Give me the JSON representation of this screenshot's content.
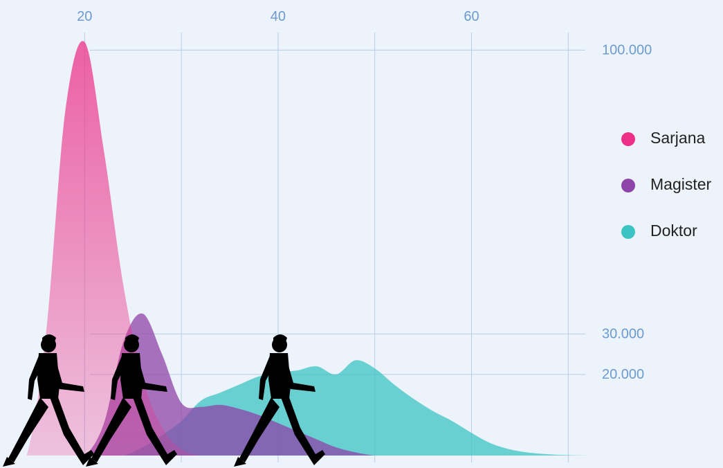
{
  "chart_data": {
    "type": "area",
    "x": [
      12,
      14,
      16,
      18,
      20,
      22,
      24,
      26,
      28,
      30,
      32,
      34,
      36,
      38,
      40,
      42,
      44,
      46,
      48,
      50,
      52,
      54,
      56,
      58,
      60,
      62,
      64,
      66,
      68,
      70,
      72
    ],
    "series": [
      {
        "name": "Doktor",
        "color": "#3cc4c4",
        "values": [
          0,
          0,
          0,
          0,
          0,
          0,
          0,
          2000,
          5000,
          8500,
          13500,
          15500,
          17500,
          19500,
          20500,
          21000,
          22000,
          20000,
          23500,
          21500,
          17500,
          14000,
          11000,
          8500,
          5600,
          3000,
          1500,
          700,
          300,
          100,
          0
        ]
      },
      {
        "name": "Magister",
        "color": "#8e44a8",
        "values": [
          0,
          0,
          0,
          0,
          0,
          8000,
          28000,
          35000,
          25000,
          13000,
          12000,
          12500,
          11500,
          10000,
          8000,
          6000,
          4000,
          2000,
          800,
          0,
          0,
          0,
          0,
          0,
          0,
          0,
          0,
          0,
          0,
          0,
          0
        ]
      },
      {
        "name": "Sarjana",
        "color": "#ec2f87",
        "values": [
          0,
          0,
          30000,
          85000,
          102000,
          75000,
          42000,
          19000,
          7000,
          1500,
          0,
          0,
          0,
          0,
          0,
          0,
          0,
          0,
          0,
          0,
          0,
          0,
          0,
          0,
          0,
          0,
          0,
          0,
          0,
          0,
          0
        ]
      }
    ],
    "xlim": [
      11.25,
      86
    ],
    "xticks": [
      20,
      40,
      60
    ],
    "minor_xticks": [
      30,
      50,
      70
    ],
    "ylim": [
      0,
      111000
    ],
    "yticks": [
      {
        "value": 20000,
        "label": "20.000"
      },
      {
        "value": 30000,
        "label": "30.000"
      },
      {
        "value": 100000,
        "label": "100.000"
      }
    ],
    "grid": true,
    "legend": "right"
  }
}
